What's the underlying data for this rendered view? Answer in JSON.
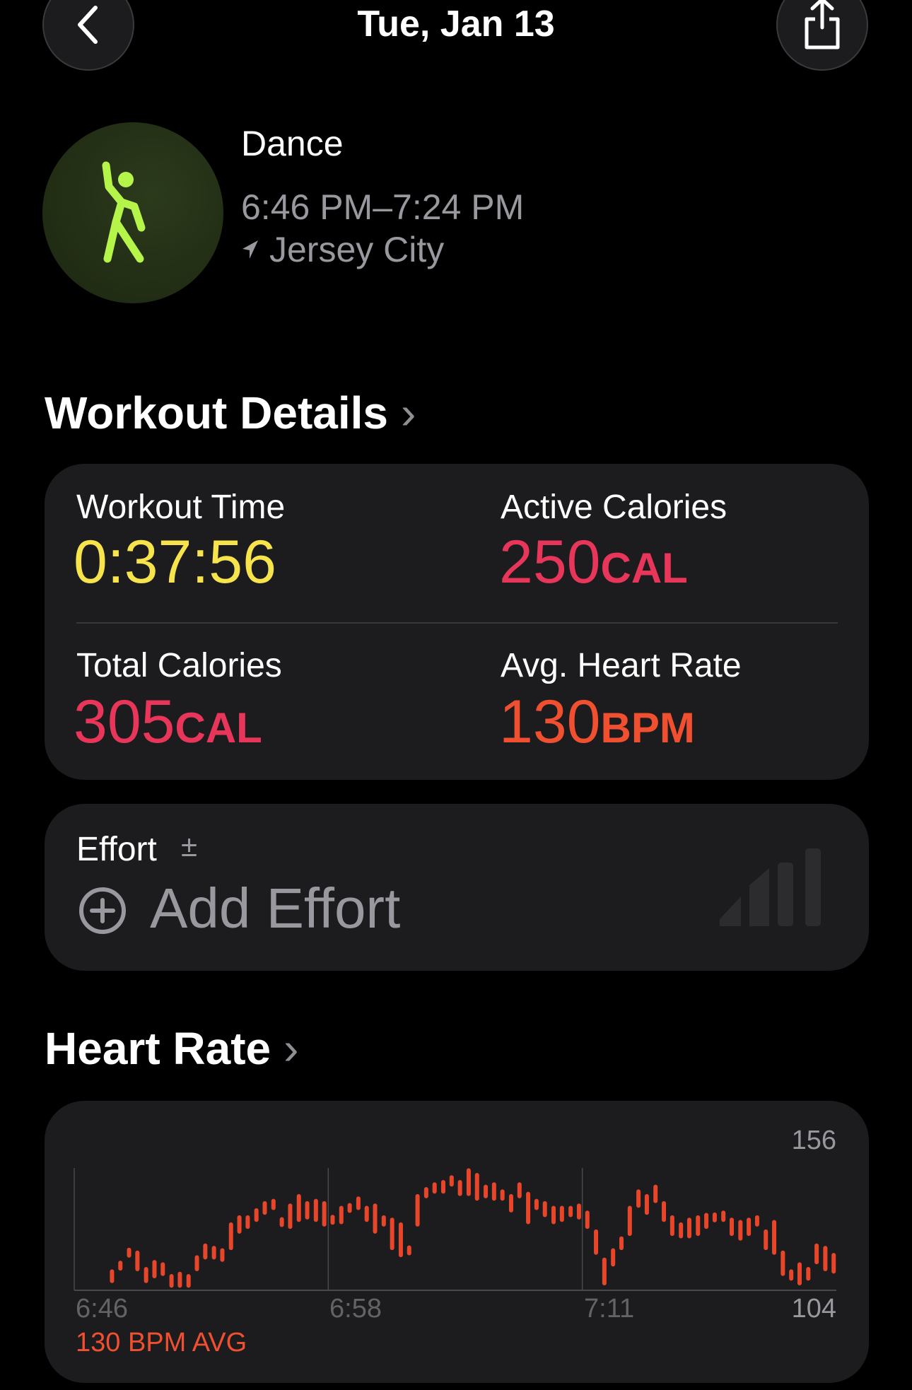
{
  "header": {
    "title": "Tue, Jan 13",
    "back_icon": "chevron-left-icon",
    "share_icon": "share-icon"
  },
  "workout": {
    "name": "Dance",
    "time_range": "6:46 PM–7:24 PM",
    "location": "Jersey City",
    "icon": "dance-figure-icon",
    "icon_color": "#b5f54a"
  },
  "details": {
    "heading": "Workout Details",
    "metrics": [
      {
        "label": "Workout Time",
        "value": "0:37:56",
        "unit": "",
        "color": "#f7e34b"
      },
      {
        "label": "Active Calories",
        "value": "250",
        "unit": "CAL",
        "color": "#e8365a"
      },
      {
        "label": "Total Calories",
        "value": "305",
        "unit": "CAL",
        "color": "#e8365a"
      },
      {
        "label": "Avg. Heart Rate",
        "value": "130",
        "unit": "BPM",
        "color": "#f0502f"
      }
    ]
  },
  "effort": {
    "label": "Effort",
    "adjust_symbol": "±",
    "add_label": "Add Effort",
    "level": 0
  },
  "heart_rate": {
    "heading": "Heart Rate",
    "avg_label": "130 BPM AVG"
  },
  "chart_data": {
    "type": "bar",
    "subtype": "range",
    "color": "#e8462b",
    "xlim": [
      "6:46",
      "7:24"
    ],
    "ylim": [
      104,
      156
    ],
    "y_tick_labels": [
      "156",
      "104"
    ],
    "x_tick_labels": [
      "6:46",
      "6:58",
      "7:11"
    ],
    "grid": "vertical",
    "bars": [
      [
        "6:47:53",
        108,
        112
      ],
      [
        "6:48:18",
        114,
        115
      ],
      [
        "6:48:44",
        119,
        121
      ],
      [
        "6:49:09",
        113,
        120
      ],
      [
        "6:49:35",
        108,
        113
      ],
      [
        "6:50:00",
        110,
        116
      ],
      [
        "6:50:25",
        111,
        115
      ],
      [
        "6:50:51",
        106,
        110
      ],
      [
        "6:51:16",
        106,
        111
      ],
      [
        "6:51:42",
        106,
        110
      ],
      [
        "6:52:07",
        113,
        118
      ],
      [
        "6:52:32",
        118,
        123
      ],
      [
        "6:52:58",
        118,
        122
      ],
      [
        "6:53:23",
        117,
        121
      ],
      [
        "6:53:49",
        122,
        132
      ],
      [
        "6:54:14",
        129,
        135
      ],
      [
        "6:54:39",
        131,
        135
      ],
      [
        "6:55:05",
        134,
        138
      ],
      [
        "6:55:30",
        137,
        141
      ],
      [
        "6:55:56",
        139,
        142
      ],
      [
        "6:56:21",
        132,
        134
      ],
      [
        "6:56:46",
        131,
        140
      ],
      [
        "6:57:12",
        134,
        144
      ],
      [
        "6:57:37",
        135,
        141
      ],
      [
        "6:58:03",
        134,
        142
      ],
      [
        "6:58:28",
        132,
        141
      ],
      [
        "6:58:53",
        133,
        135
      ],
      [
        "6:59:19",
        133,
        139
      ],
      [
        "6:59:44",
        138,
        140
      ],
      [
        "7:00:10",
        139,
        143
      ],
      [
        "7:00:35",
        134,
        139
      ],
      [
        "7:01:00",
        129,
        140
      ],
      [
        "7:01:26",
        132,
        135
      ],
      [
        "7:01:51",
        122,
        134
      ],
      [
        "7:02:17",
        119,
        132
      ],
      [
        "7:02:42",
        120,
        122
      ],
      [
        "7:03:07",
        132,
        144
      ],
      [
        "7:03:33",
        144,
        147
      ],
      [
        "7:03:58",
        146,
        149
      ],
      [
        "7:04:24",
        146,
        150
      ],
      [
        "7:04:49",
        149,
        152
      ],
      [
        "7:05:14",
        145,
        150
      ],
      [
        "7:05:40",
        145,
        155
      ],
      [
        "7:06:05",
        143,
        153
      ],
      [
        "7:06:31",
        144,
        148
      ],
      [
        "7:06:56",
        143,
        149
      ],
      [
        "7:07:21",
        143,
        146
      ],
      [
        "7:07:47",
        138,
        144
      ],
      [
        "7:08:12",
        144,
        149
      ],
      [
        "7:08:38",
        133,
        145
      ],
      [
        "7:09:03",
        139,
        142
      ],
      [
        "7:09:28",
        136,
        141
      ],
      [
        "7:09:54",
        133,
        139
      ],
      [
        "7:10:19",
        134,
        139
      ],
      [
        "7:10:45",
        136,
        139
      ],
      [
        "7:11:10",
        135,
        140
      ],
      [
        "7:11:35",
        131,
        137
      ],
      [
        "7:12:01",
        120,
        129
      ],
      [
        "7:12:26",
        107,
        117
      ],
      [
        "7:12:52",
        115,
        121
      ],
      [
        "7:13:17",
        122,
        126
      ],
      [
        "7:13:42",
        128,
        139
      ],
      [
        "7:14:08",
        140,
        146
      ],
      [
        "7:14:33",
        137,
        144
      ],
      [
        "7:14:59",
        142,
        148
      ],
      [
        "7:15:24",
        134,
        141
      ],
      [
        "7:15:49",
        128,
        135
      ],
      [
        "7:16:15",
        127,
        132
      ],
      [
        "7:16:40",
        127,
        134
      ],
      [
        "7:17:06",
        128,
        135
      ],
      [
        "7:17:31",
        131,
        136
      ],
      [
        "7:17:56",
        134,
        136
      ],
      [
        "7:18:22",
        134,
        137
      ],
      [
        "7:18:47",
        128,
        134
      ],
      [
        "7:19:13",
        126,
        133
      ],
      [
        "7:19:38",
        128,
        134
      ],
      [
        "7:20:03",
        132,
        135
      ],
      [
        "7:20:29",
        122,
        129
      ],
      [
        "7:20:54",
        120,
        133
      ],
      [
        "7:21:20",
        111,
        120
      ],
      [
        "7:21:45",
        109,
        112
      ],
      [
        "7:22:10",
        107,
        115
      ],
      [
        "7:22:36",
        109,
        113
      ],
      [
        "7:23:01",
        116,
        123
      ],
      [
        "7:23:27",
        113,
        122
      ],
      [
        "7:23:52",
        112,
        119
      ]
    ]
  }
}
